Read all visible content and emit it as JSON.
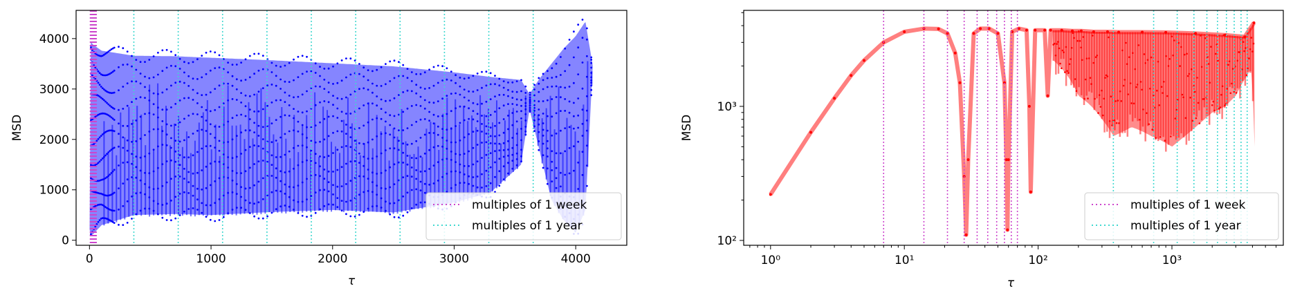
{
  "colors": {
    "left_series": "#0000ff",
    "right_series": "#ff0000",
    "week_lines": "#cc44cc",
    "year_lines": "#40d8d0"
  },
  "chart_data": [
    {
      "type": "line",
      "xlabel": "τ",
      "ylabel": "MSD",
      "xlim": [
        -110,
        4420
      ],
      "ylim": [
        -100,
        4560
      ],
      "x_ticks": [
        0,
        1000,
        2000,
        3000,
        4000
      ],
      "x_tick_labels": [
        "0",
        "1000",
        "2000",
        "3000",
        "4000"
      ],
      "y_ticks": [
        0,
        1000,
        2000,
        3000,
        4000
      ],
      "y_tick_labels": [
        "0",
        "1000",
        "2000",
        "3000",
        "4000"
      ],
      "grid": false,
      "legend_position": "lower-right",
      "series": [
        {
          "description_envelope_upper": {
            "x": [
              1,
              7,
              30,
              100,
              365,
              700,
              1000,
              1500,
              2000,
              2500,
              3000,
              3300,
              3550,
              3620,
              3700,
              3800,
              3900,
              4000,
              4080,
              4140
            ],
            "y": [
              220,
              3950,
              3880,
              3760,
              3660,
              3650,
              3620,
              3570,
              3510,
              3450,
              3330,
              3240,
              3180,
              2900,
              3200,
              3500,
              3800,
              4050,
              4340,
              3460
            ]
          },
          "description_envelope_lower": {
            "x": [
              1,
              7,
              30,
              100,
              365,
              700,
              1000,
              1500,
              2000,
              2500,
              3000,
              3300,
              3550,
              3620,
              3700,
              3800,
              3900,
              4000,
              4080,
              4140
            ],
            "y": [
              220,
              80,
              120,
              300,
              500,
              520,
              500,
              560,
              600,
              550,
              750,
              950,
              1500,
              2600,
              1800,
              800,
              400,
              150,
              600,
              3460
            ]
          }
        }
      ],
      "reference_lines": {
        "week_multiples_x": [
          7,
          14,
          21,
          28,
          35,
          42,
          49,
          56
        ],
        "year_multiples_x": [
          365,
          730,
          1095,
          1460,
          1825,
          2190,
          2555,
          2920,
          3285,
          3650
        ]
      },
      "legend": [
        "multiples of 1 week",
        "multiples of 1 year"
      ]
    },
    {
      "type": "line",
      "xlabel": "τ",
      "ylabel": "MSD",
      "xscale": "log",
      "yscale": "log",
      "xlim": [
        0.63,
        6800
      ],
      "ylim": [
        92,
        5200
      ],
      "x_ticks": [
        1,
        10,
        100,
        1000
      ],
      "x_tick_labels": [
        "10⁰",
        "10¹",
        "10²",
        "10³"
      ],
      "y_ticks": [
        100,
        1000
      ],
      "y_tick_labels": [
        "10²",
        "10³"
      ],
      "grid": false,
      "legend_position": "lower-right",
      "series": [
        {
          "curve_points": {
            "x": [
              1,
              2,
              3,
              4,
              5,
              7,
              10,
              14,
              18,
              21,
              24,
              26,
              28,
              29,
              30,
              33,
              37,
              43,
              50,
              56,
              58,
              59,
              60,
              64,
              72,
              82,
              86,
              88,
              95,
              112,
              118,
              124,
              150,
              180,
              210,
              260,
              330,
              400,
              600,
              900,
              1500,
              2500,
              3500,
              4100
            ],
            "y": [
              220,
              640,
              1150,
              1700,
              2200,
              3000,
              3600,
              3800,
              3780,
              3500,
              2500,
              1500,
              300,
              110,
              400,
              3500,
              3800,
              3800,
              3500,
              1500,
              400,
              120,
              400,
              3600,
              3800,
              3700,
              1000,
              230,
              3700,
              3700,
              1200,
              3700,
              3700,
              3650,
              3650,
              3600,
              3600,
              3580,
              3580,
              3560,
              3500,
              3400,
              3300,
              4200
            ]
          },
          "description_envelope_lower": {
            "x": [
              130,
              200,
              300,
              365,
              500,
              700,
              1000,
              1500,
              2000,
              2500,
              3000,
              3500,
              3900,
              4150
            ],
            "y": [
              2200,
              1200,
              800,
              600,
              700,
              600,
              500,
              700,
              900,
              1000,
              1200,
              1600,
              1900,
              500
            ]
          }
        }
      ],
      "reference_lines": {
        "week_multiples_x": [
          7,
          14,
          21,
          28,
          35,
          42,
          49,
          56,
          63,
          70
        ],
        "year_multiples_x": [
          365,
          730,
          1095,
          1460,
          1825,
          2190,
          2555,
          2920,
          3285,
          3650
        ]
      },
      "legend": [
        "multiples of 1 week",
        "multiples of 1 year"
      ]
    }
  ]
}
